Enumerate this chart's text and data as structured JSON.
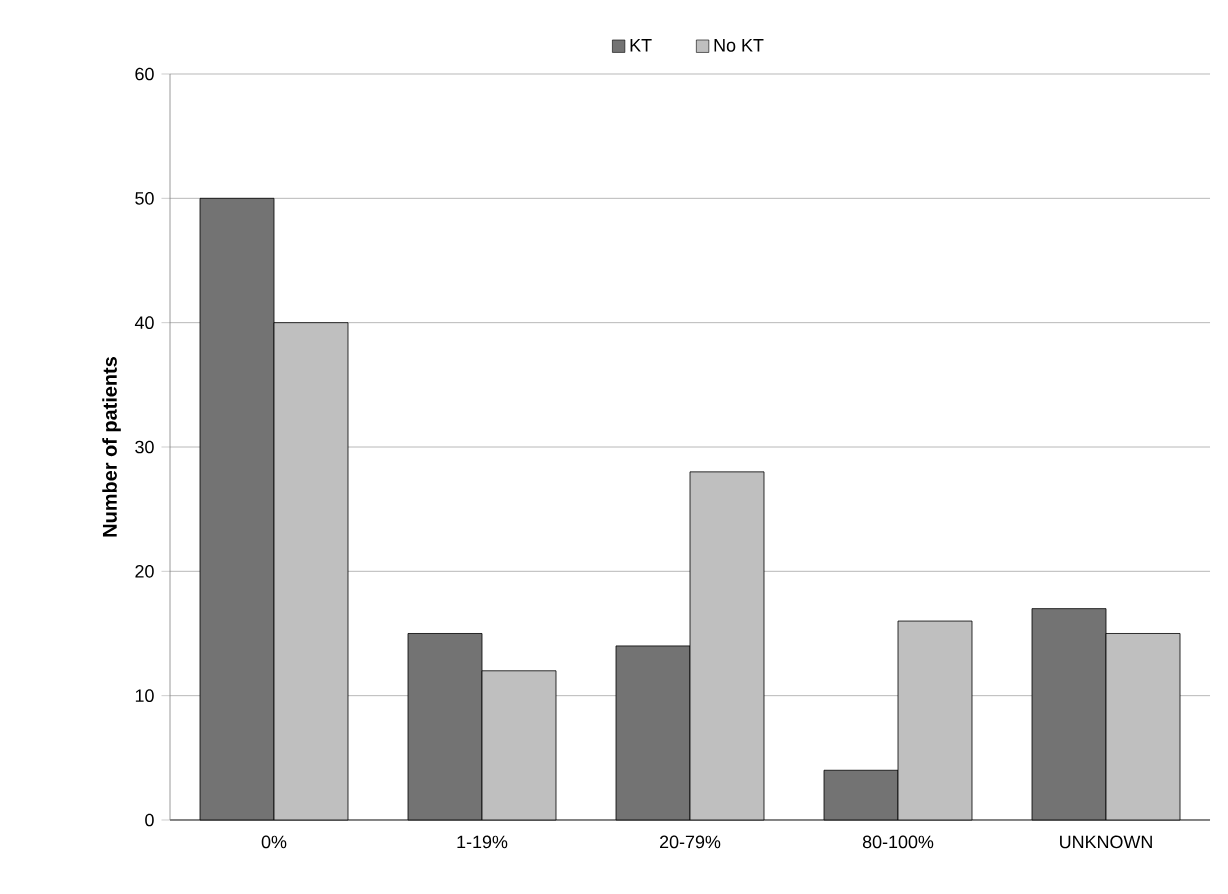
{
  "chart_data": {
    "type": "bar",
    "ylabel": "Number of patients",
    "categories": [
      "0%",
      "1-19%",
      "20-79%",
      "80-100%",
      "UNKNOWN"
    ],
    "series": [
      {
        "name": "KT",
        "color": "#737373",
        "values": [
          50,
          15,
          14,
          4,
          17
        ]
      },
      {
        "name": "No KT",
        "color": "#bfbfbf",
        "values": [
          40,
          12,
          28,
          16,
          15
        ]
      }
    ],
    "ylim": [
      0,
      60
    ],
    "yticks": [
      0,
      10,
      20,
      30,
      40,
      50,
      60
    ],
    "grid": "y",
    "legend": "top"
  }
}
